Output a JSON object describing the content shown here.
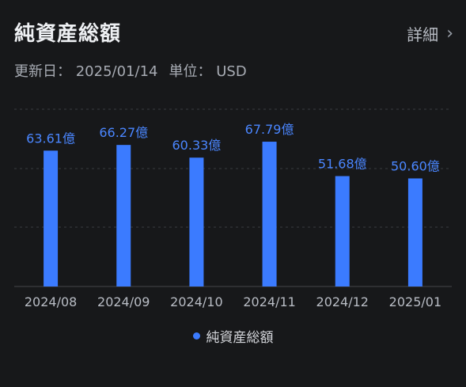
{
  "header": {
    "title": "純資産総額",
    "detail_label": "詳細",
    "detail_icon": "chevron-right-icon",
    "updated_label": "更新日：",
    "updated_value": "2025/01/14",
    "unit_label": "単位：",
    "unit_value": "USD"
  },
  "colors": {
    "background": "#17181a",
    "bar": "#3b7bff",
    "value_label": "#4a86ff",
    "grid": "#3a3c40",
    "axis_text": "#b8bcc4"
  },
  "chart_data": {
    "type": "bar",
    "title": "純資産総額",
    "categories": [
      "2024/08",
      "2024/09",
      "2024/10",
      "2024/11",
      "2024/12",
      "2025/01"
    ],
    "series": [
      {
        "name": "純資産総額",
        "values": [
          63.61,
          66.27,
          60.33,
          67.79,
          51.68,
          50.6
        ]
      }
    ],
    "data_labels": [
      "63.61億",
      "66.27億",
      "60.33億",
      "67.79億",
      "51.68億",
      "50.60億"
    ],
    "unit": "億",
    "ylim": [
      0,
      83
    ],
    "grid": true,
    "legend": "bottom-center"
  }
}
